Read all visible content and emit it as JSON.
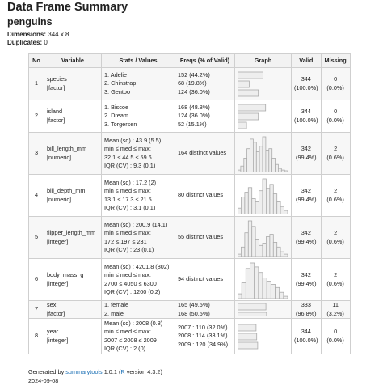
{
  "title": "Data Frame Summary",
  "subtitle": "penguins",
  "meta": {
    "dimensions_label": "Dimensions:",
    "dimensions_value": "344 x 8",
    "duplicates_label": "Duplicates:",
    "duplicates_value": "0"
  },
  "columns": [
    "No",
    "Variable",
    "Stats / Values",
    "Freqs (% of Valid)",
    "Graph",
    "Valid",
    "Missing"
  ],
  "rows": [
    {
      "no": "1",
      "var_name": "species",
      "var_type": "[factor]",
      "stats": [
        "1. Adelie",
        "2. Chinstrap",
        "3. Gentoo"
      ],
      "freqs": [
        "152 (44.2%)",
        "68 (19.8%)",
        "124 (36.0%)"
      ],
      "graph": {
        "kind": "hbar",
        "values": [
          44.2,
          19.8,
          36.0
        ]
      },
      "valid_n": "344",
      "valid_pct": "(100.0%)",
      "missing_n": "0",
      "missing_pct": "(0.0%)"
    },
    {
      "no": "2",
      "var_name": "island",
      "var_type": "[factor]",
      "stats": [
        "1. Biscoe",
        "2. Dream",
        "3. Torgersen"
      ],
      "freqs": [
        "168 (48.8%)",
        "124 (36.0%)",
        "52 (15.1%)"
      ],
      "graph": {
        "kind": "hbar",
        "values": [
          48.8,
          36.0,
          15.1
        ]
      },
      "valid_n": "344",
      "valid_pct": "(100.0%)",
      "missing_n": "0",
      "missing_pct": "(0.0%)"
    },
    {
      "no": "3",
      "var_name": "bill_length_mm",
      "var_type": "[numeric]",
      "stats": [
        "Mean (sd) : 43.9 (5.5)",
        "min ≤ med ≤ max:",
        "32.1 ≤ 44.5 ≤ 59.6",
        "IQR (CV) : 9.3 (0.1)"
      ],
      "freqs": [
        "164 distinct values"
      ],
      "graph": {
        "kind": "hist",
        "values": [
          3,
          8,
          18,
          30,
          42,
          38,
          26,
          33,
          45,
          28,
          30,
          18,
          10,
          5,
          3,
          2
        ]
      },
      "valid_n": "342",
      "valid_pct": "(99.4%)",
      "missing_n": "2",
      "missing_pct": "(0.6%)"
    },
    {
      "no": "4",
      "var_name": "bill_depth_mm",
      "var_type": "[numeric]",
      "stats": [
        "Mean (sd) : 17.2 (2)",
        "min ≤ med ≤ max:",
        "13.1 ≤ 17.3 ≤ 21.5",
        "IQR (CV) : 3.1 (0.1)"
      ],
      "freqs": [
        "80 distinct values"
      ],
      "graph": {
        "kind": "hist",
        "values": [
          8,
          22,
          28,
          34,
          20,
          16,
          30,
          45,
          33,
          38,
          26,
          16,
          10,
          5
        ]
      },
      "valid_n": "342",
      "valid_pct": "(99.4%)",
      "missing_n": "2",
      "missing_pct": "(0.6%)"
    },
    {
      "no": "5",
      "var_name": "flipper_length_mm",
      "var_type": "[integer]",
      "stats": [
        "Mean (sd) : 200.9 (14.1)",
        "min ≤ med ≤ max:",
        "172 ≤ 197 ≤ 231",
        "IQR (CV) : 23 (0.1)"
      ],
      "freqs": [
        "55 distinct values"
      ],
      "graph": {
        "kind": "hist",
        "values": [
          3,
          12,
          30,
          45,
          38,
          22,
          14,
          17,
          25,
          28,
          18,
          12,
          6,
          3
        ]
      },
      "valid_n": "342",
      "valid_pct": "(99.4%)",
      "missing_n": "2",
      "missing_pct": "(0.6%)"
    },
    {
      "no": "6",
      "var_name": "body_mass_g",
      "var_type": "[integer]",
      "stats": [
        "Mean (sd) : 4201.8 (802)",
        "min ≤ med ≤ max:",
        "2700 ≤ 4050 ≤ 6300",
        "IQR (CV) : 1200 (0.2)"
      ],
      "freqs": [
        "94 distinct values"
      ],
      "graph": {
        "kind": "hist",
        "values": [
          6,
          20,
          38,
          45,
          40,
          33,
          26,
          22,
          18,
          14,
          8,
          3
        ]
      },
      "valid_n": "342",
      "valid_pct": "(99.4%)",
      "missing_n": "2",
      "missing_pct": "(0.6%)"
    },
    {
      "no": "7",
      "var_name": "sex",
      "var_type": "[factor]",
      "stats": [
        "1. female",
        "2. male"
      ],
      "freqs": [
        "165 (49.5%)",
        "168 (50.5%)"
      ],
      "graph": {
        "kind": "hbar",
        "values": [
          49.5,
          50.5
        ]
      },
      "valid_n": "333",
      "valid_pct": "(96.8%)",
      "missing_n": "11",
      "missing_pct": "(3.2%)"
    },
    {
      "no": "8",
      "var_name": "year",
      "var_type": "[integer]",
      "stats": [
        "Mean (sd) : 2008 (0.8)",
        "min ≤ med ≤ max:",
        "2007 ≤ 2008 ≤ 2009",
        "IQR (CV) : 2 (0)"
      ],
      "freqs": [
        "2007 : 110 (32.0%)",
        "2008 : 114 (33.1%)",
        "2009 : 120 (34.9%)"
      ],
      "graph": {
        "kind": "hbar",
        "values": [
          32.0,
          33.1,
          34.9
        ]
      },
      "valid_n": "344",
      "valid_pct": "(100.0%)",
      "missing_n": "0",
      "missing_pct": "(0.0%)"
    }
  ],
  "footer": {
    "generated_prefix": "Generated by ",
    "summarytools_link": "summarytools",
    "version_text": " 1.0.1 (",
    "r_link": "R",
    "r_version": " version 4.3.2)",
    "date": "2024-09-08"
  }
}
